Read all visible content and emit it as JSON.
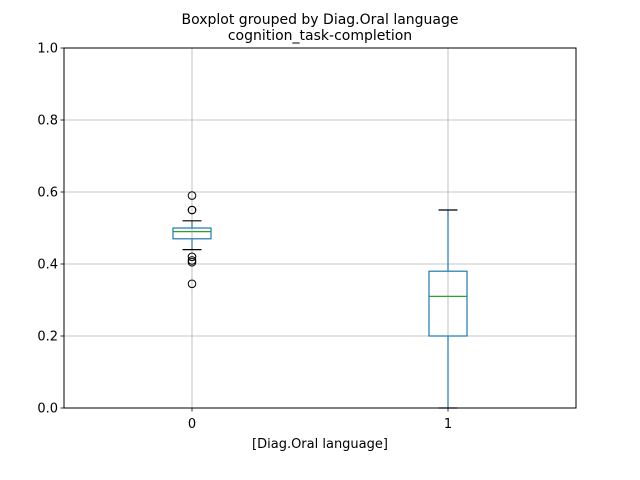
{
  "chart_data": {
    "type": "boxplot",
    "suptitle": "Boxplot grouped by Diag.Oral language",
    "title": "cognition_task-completion",
    "xlabel": "[Diag.Oral language]",
    "ylabel": "",
    "categories": [
      "0",
      "1"
    ],
    "ylim": [
      0.0,
      1.0
    ],
    "yticks": [
      "0.0",
      "0.2",
      "0.4",
      "0.6",
      "0.8",
      "1.0"
    ],
    "grid": true,
    "boxes": [
      {
        "category": "0",
        "whisker_low": 0.44,
        "q1": 0.47,
        "median": 0.49,
        "q3": 0.5,
        "whisker_high": 0.52,
        "outliers": [
          0.59,
          0.55,
          0.55,
          0.42,
          0.41,
          0.405,
          0.345
        ]
      },
      {
        "category": "1",
        "whisker_low": 0.0,
        "q1": 0.2,
        "median": 0.31,
        "q3": 0.38,
        "whisker_high": 0.55,
        "outliers": []
      }
    ],
    "colors": {
      "box": "#1f77b4",
      "median": "#2ca02c",
      "whisker": "#000000",
      "grid": "#b0b0b0"
    }
  }
}
